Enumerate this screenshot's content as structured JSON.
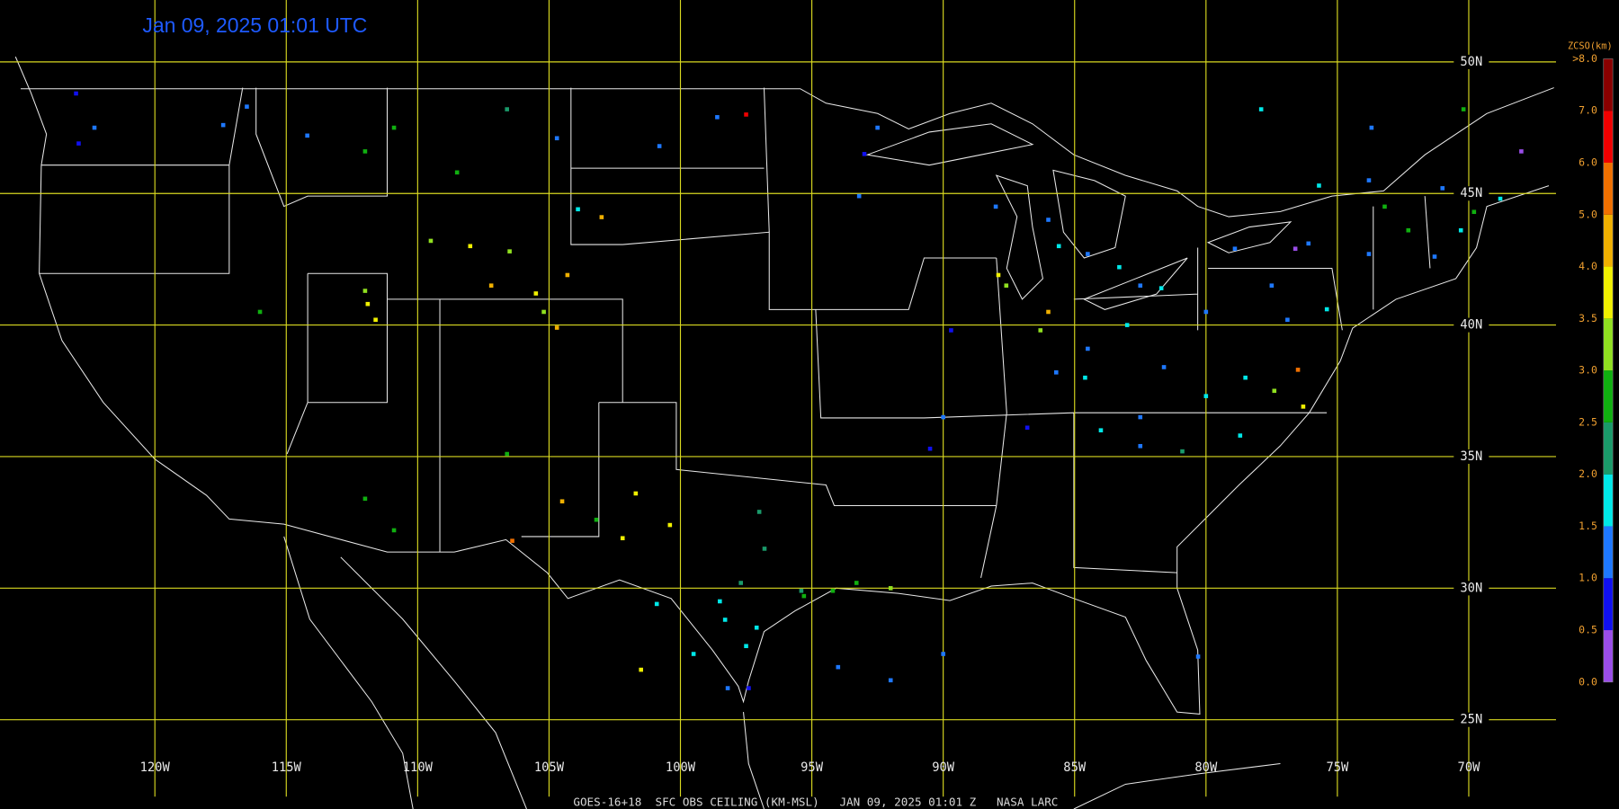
{
  "title": "Jan 09, 2025 01:01 UTC",
  "caption": "GOES-16+18  SFC OBS CEILING (KM-MSL)   JAN 09, 2025 01:01 Z   NASA LARC",
  "grid": {
    "lons": [
      {
        "value": -120,
        "label": "120W"
      },
      {
        "value": -115,
        "label": "115W"
      },
      {
        "value": -110,
        "label": "110W"
      },
      {
        "value": -105,
        "label": "105W"
      },
      {
        "value": -100,
        "label": "100W"
      },
      {
        "value": -95,
        "label": "95W"
      },
      {
        "value": -90,
        "label": "90W"
      },
      {
        "value": -85,
        "label": "85W"
      },
      {
        "value": -80,
        "label": "80W"
      },
      {
        "value": -75,
        "label": "75W"
      },
      {
        "value": -70,
        "label": "70W"
      }
    ],
    "lats": [
      {
        "value": 50,
        "label": "50N"
      },
      {
        "value": 45,
        "label": "45N"
      },
      {
        "value": 40,
        "label": "40N"
      },
      {
        "value": 35,
        "label": "35N"
      },
      {
        "value": 30,
        "label": "30N"
      },
      {
        "value": 25,
        "label": "25N"
      }
    ]
  },
  "colorbar": {
    "title": "ZCSO(km)",
    "levels": [
      {
        "value": 0,
        "label": "0.0"
      },
      {
        "value": 0.5,
        "label": "0.5"
      },
      {
        "value": 1,
        "label": "1.0"
      },
      {
        "value": 1.5,
        "label": "1.5"
      },
      {
        "value": 2,
        "label": "2.0"
      },
      {
        "value": 2.5,
        "label": "2.5"
      },
      {
        "value": 3,
        "label": "3.0"
      },
      {
        "value": 3.5,
        "label": "3.5"
      },
      {
        "value": 4,
        "label": "4.0"
      },
      {
        "value": 5,
        "label": "5.0"
      },
      {
        "value": 6,
        "label": "6.0"
      },
      {
        "value": 7,
        "label": "7.0"
      },
      {
        "value": 8,
        "label": ">8.0"
      }
    ],
    "colors": [
      "#9a4de8",
      "#1010f0",
      "#1e78ff",
      "#00e8e8",
      "#1a9a6a",
      "#10b010",
      "#90e020",
      "#f0f000",
      "#f0b000",
      "#f07000",
      "#f00000",
      "#8a0000"
    ]
  },
  "stations": [
    [
      -123.0,
      48.8,
      0.8
    ],
    [
      -122.3,
      47.5,
      1.2
    ],
    [
      -122.9,
      46.9,
      0.8
    ],
    [
      -117.4,
      47.6,
      1.2
    ],
    [
      -116.5,
      48.3,
      1.2
    ],
    [
      -114.2,
      47.2,
      1.2
    ],
    [
      -112.0,
      46.6,
      2.7
    ],
    [
      -110.9,
      47.5,
      2.6
    ],
    [
      -108.5,
      45.8,
      2.8
    ],
    [
      -106.6,
      48.2,
      2.3
    ],
    [
      -104.7,
      47.1,
      1.2
    ],
    [
      -100.8,
      46.8,
      1.2
    ],
    [
      -98.6,
      47.9,
      1.2
    ],
    [
      -97.5,
      48.0,
      6.5
    ],
    [
      -109.5,
      43.2,
      3.2
    ],
    [
      -108.0,
      43.0,
      3.8
    ],
    [
      -106.5,
      42.8,
      3.2
    ],
    [
      -105.5,
      41.2,
      3.7
    ],
    [
      -107.2,
      41.5,
      4.5
    ],
    [
      -104.3,
      41.9,
      4.2
    ],
    [
      -111.9,
      40.8,
      3.8
    ],
    [
      -112.0,
      41.3,
      3.3
    ],
    [
      -111.6,
      40.2,
      3.8
    ],
    [
      -116.0,
      40.5,
      2.7
    ],
    [
      -103.0,
      44.1,
      4.7
    ],
    [
      -103.9,
      44.4,
      1.7
    ],
    [
      -104.7,
      39.9,
      4.3
    ],
    [
      -105.2,
      40.5,
      3.2
    ],
    [
      -112.0,
      33.4,
      2.8
    ],
    [
      -110.9,
      32.2,
      2.7
    ],
    [
      -106.6,
      35.1,
      2.6
    ],
    [
      -106.4,
      31.8,
      5.5
    ],
    [
      -104.5,
      33.3,
      4.3
    ],
    [
      -103.2,
      32.6,
      2.8
    ],
    [
      -102.2,
      31.9,
      3.7
    ],
    [
      -101.7,
      33.6,
      3.9
    ],
    [
      -100.4,
      32.4,
      3.9
    ],
    [
      -98.5,
      29.5,
      1.7
    ],
    [
      -97.7,
      30.2,
      2.3
    ],
    [
      -97.0,
      32.9,
      2.3
    ],
    [
      -96.8,
      31.5,
      2.3
    ],
    [
      -95.4,
      29.9,
      2.2
    ],
    [
      -95.3,
      29.7,
      2.8
    ],
    [
      -94.2,
      29.9,
      2.7
    ],
    [
      -97.5,
      27.8,
      1.7
    ],
    [
      -97.4,
      26.2,
      0.8
    ],
    [
      -98.2,
      26.2,
      1.2
    ],
    [
      -99.5,
      27.5,
      1.7
    ],
    [
      -100.9,
      29.4,
      1.7
    ],
    [
      -101.5,
      26.9,
      3.9
    ],
    [
      -98.3,
      28.8,
      1.7
    ],
    [
      -97.1,
      28.5,
      1.9
    ],
    [
      -93.3,
      30.2,
      2.8
    ],
    [
      -92.0,
      30.0,
      3.2
    ],
    [
      -90.0,
      27.5,
      1.2
    ],
    [
      -94.0,
      27.0,
      1.2
    ],
    [
      -92.0,
      26.5,
      1.2
    ],
    [
      -93.2,
      44.9,
      1.2
    ],
    [
      -93.0,
      46.5,
      0.8
    ],
    [
      -92.5,
      47.5,
      1.2
    ],
    [
      -89.7,
      39.8,
      0.8
    ],
    [
      -90.0,
      36.5,
      1.2
    ],
    [
      -90.5,
      35.3,
      0.8
    ],
    [
      -88.0,
      44.5,
      1.2
    ],
    [
      -86.0,
      44.0,
      1.4
    ],
    [
      -85.6,
      43.0,
      1.7
    ],
    [
      -84.5,
      42.7,
      1.2
    ],
    [
      -83.3,
      42.2,
      1.7
    ],
    [
      -87.9,
      41.9,
      3.7
    ],
    [
      -87.6,
      41.5,
      3.4
    ],
    [
      -86.3,
      39.8,
      3.3
    ],
    [
      -86.0,
      40.5,
      4.5
    ],
    [
      -84.5,
      39.1,
      1.4
    ],
    [
      -83.0,
      40.0,
      1.7
    ],
    [
      -82.5,
      41.5,
      1.2
    ],
    [
      -81.7,
      41.4,
      1.7
    ],
    [
      -80.0,
      40.5,
      1.2
    ],
    [
      -85.7,
      38.2,
      1.2
    ],
    [
      -84.6,
      38.0,
      1.7
    ],
    [
      -86.8,
      36.1,
      0.8
    ],
    [
      -84.0,
      36.0,
      1.7
    ],
    [
      -82.5,
      36.5,
      1.2
    ],
    [
      -81.6,
      38.4,
      1.2
    ],
    [
      -80.0,
      37.3,
      1.7
    ],
    [
      -78.5,
      38.0,
      1.7
    ],
    [
      -77.4,
      37.5,
      3.3
    ],
    [
      -76.3,
      36.9,
      3.6
    ],
    [
      -76.5,
      38.3,
      5.7
    ],
    [
      -78.7,
      35.8,
      1.7
    ],
    [
      -80.9,
      35.2,
      2.2
    ],
    [
      -82.5,
      35.4,
      1.2
    ],
    [
      -78.9,
      42.9,
      1.2
    ],
    [
      -76.1,
      43.1,
      1.2
    ],
    [
      -73.8,
      42.7,
      1.2
    ],
    [
      -76.6,
      42.9,
      0.4
    ],
    [
      -77.5,
      41.5,
      1.2
    ],
    [
      -75.4,
      40.6,
      1.7
    ],
    [
      -76.9,
      40.2,
      1.2
    ],
    [
      -73.2,
      44.5,
      2.7
    ],
    [
      -72.3,
      43.6,
      2.6
    ],
    [
      -71.3,
      42.6,
      1.2
    ],
    [
      -70.3,
      43.6,
      1.7
    ],
    [
      -69.8,
      44.3,
      2.7
    ],
    [
      -68.8,
      44.8,
      1.7
    ],
    [
      -68.0,
      46.6,
      0.4
    ],
    [
      -71.0,
      45.2,
      1.2
    ],
    [
      -73.8,
      45.5,
      1.2
    ],
    [
      -75.7,
      45.3,
      1.7
    ],
    [
      -80.3,
      27.4,
      1.2
    ],
    [
      -77.9,
      48.2,
      1.7
    ],
    [
      -73.7,
      47.5,
      1.2
    ],
    [
      -70.2,
      48.2,
      2.5
    ]
  ]
}
